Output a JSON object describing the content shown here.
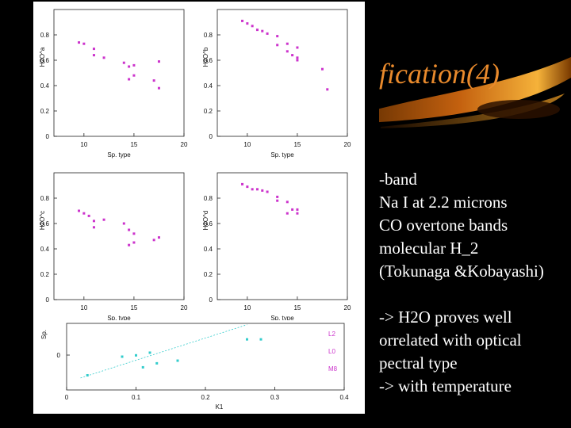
{
  "slide": {
    "title": "fication(4)",
    "bullets_top": [
      "-band",
      "Na I at 2.2 microns",
      "CO overtone bands",
      "molecular H_2",
      "(Tokunaga &Kobayashi)"
    ],
    "bullets_bottom": [
      "-> H2O proves well",
      "orrelated with optical",
      "pectral type",
      "-> with temperature"
    ],
    "colors": {
      "title": "#e98a2c",
      "points_magenta": "#cc33cc",
      "points_cyan": "#33cccc",
      "legend": "#cc33cc"
    }
  },
  "chart_data": [
    {
      "type": "scatter",
      "xlabel": "Sp. type",
      "ylabel": "H2O^a",
      "xlim": [
        7,
        20
      ],
      "ylim": [
        0,
        1
      ],
      "xticks": [
        "10",
        "15",
        "20"
      ],
      "yticks": [
        "0",
        "0.2",
        "0.4",
        "0.6",
        "0.8"
      ],
      "x": [
        9.5,
        10,
        11,
        11,
        12,
        14,
        14.5,
        14.5,
        15,
        15,
        17,
        17.5,
        17.5
      ],
      "y": [
        0.74,
        0.73,
        0.69,
        0.64,
        0.62,
        0.58,
        0.55,
        0.45,
        0.56,
        0.48,
        0.44,
        0.59,
        0.38
      ]
    },
    {
      "type": "scatter",
      "xlabel": "Sp. type",
      "ylabel": "H2O^b",
      "xlim": [
        7,
        20
      ],
      "ylim": [
        0,
        1
      ],
      "xticks": [
        "10",
        "15",
        "20"
      ],
      "yticks": [
        "0",
        "0.2",
        "0.4",
        "0.6",
        "0.8"
      ],
      "x": [
        9.5,
        10,
        10.5,
        11,
        11.5,
        12,
        13,
        13,
        14,
        14,
        14.5,
        15,
        15,
        15,
        17.5,
        18
      ],
      "y": [
        0.91,
        0.89,
        0.87,
        0.84,
        0.83,
        0.81,
        0.79,
        0.72,
        0.73,
        0.67,
        0.64,
        0.62,
        0.6,
        0.7,
        0.53,
        0.37
      ]
    },
    {
      "type": "scatter",
      "xlabel": "Sp. type",
      "ylabel": "H2O^c",
      "xlim": [
        7,
        20
      ],
      "ylim": [
        0,
        1
      ],
      "xticks": [
        "10",
        "15",
        "20"
      ],
      "yticks": [
        "0",
        "0.2",
        "0.4",
        "0.6",
        "0.8"
      ],
      "x": [
        9.5,
        10,
        10.5,
        11,
        11,
        12,
        14,
        14.5,
        14.5,
        15,
        15,
        17,
        17.5
      ],
      "y": [
        0.7,
        0.68,
        0.66,
        0.62,
        0.57,
        0.63,
        0.6,
        0.55,
        0.43,
        0.52,
        0.45,
        0.47,
        0.49
      ]
    },
    {
      "type": "scatter",
      "xlabel": "Sp. type",
      "ylabel": "H2O^d",
      "xlim": [
        7,
        20
      ],
      "ylim": [
        0,
        1
      ],
      "xticks": [
        "10",
        "15",
        "20"
      ],
      "yticks": [
        "0",
        "0.2",
        "0.4",
        "0.6",
        "0.8"
      ],
      "x": [
        9.5,
        10,
        10.5,
        11,
        11.5,
        12,
        13,
        13,
        14,
        14,
        14.5,
        15,
        15
      ],
      "y": [
        0.91,
        0.89,
        0.87,
        0.87,
        0.86,
        0.85,
        0.81,
        0.78,
        0.77,
        0.68,
        0.71,
        0.68,
        0.71
      ]
    },
    {
      "type": "scatter",
      "xlabel": "K1",
      "ylabel": "Sp.",
      "xlim": [
        0,
        0.4
      ],
      "ylim": [
        4,
        9
      ],
      "xticks": [
        "0",
        "0.1",
        "0.2",
        "0.3",
        "0.4"
      ],
      "yticks": [
        "0"
      ],
      "x": [
        0.03,
        0.08,
        0.1,
        0.11,
        0.12,
        0.13,
        0.16,
        0.26,
        0.28
      ],
      "y": [
        5.1,
        6.5,
        6.6,
        5.7,
        6.8,
        6.0,
        6.2,
        7.8,
        7.8
      ],
      "legend": [
        "L2",
        "L0",
        "M8"
      ]
    }
  ]
}
